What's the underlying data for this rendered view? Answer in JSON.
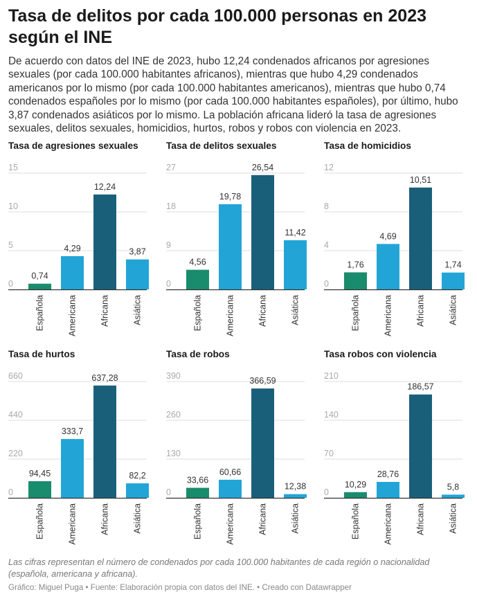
{
  "title": "Tasa de delitos por cada 100.000 personas en 2023 según el INE",
  "description": "De acuerdo con datos del INE de 2023, hubo 12,24 condenados africanos por agresiones sexuales (por cada 100.000 habitantes africanos), mientras que hubo 4,29 condenados americanos por lo mismo (por cada 100.000 habitantes americanos), mientras que hubo 0,74 condenados españoles por lo mismo (por cada 100.000 habitantes españoles), por último, hubo 3,87 condenados asiáticos por lo mismo. La población africana lideró la tasa de agresiones sexuales, delitos sexuales, homicidios, hurtos, robos y robos con violencia en 2023.",
  "note": "Las cifras representan el número de condenados por cada 100.000 habitantes de cada región o nacionalidad (española, americana y africana).",
  "footer": "Gráfico: Miguel Puga • Fuente: Elaboración propia con datos del INE. • Creado con Datawrapper",
  "colors": {
    "Española": "#1a8c6e",
    "Americana": "#22a5d6",
    "Africana": "#1a5f7a",
    "Asiática": "#22a5d6",
    "grid": "#dddddd",
    "axis": "#333333",
    "tick_text": "#aaaaaa"
  },
  "chart_data": [
    {
      "type": "bar",
      "title": "Tasa de agresiones sexuales",
      "categories": [
        "Española",
        "Americana",
        "Africana",
        "Asiática"
      ],
      "values": [
        0.74,
        4.29,
        12.24,
        3.87
      ],
      "value_labels": [
        "0,74",
        "4,29",
        "12,24",
        "3,87"
      ],
      "yticks": [
        0,
        5,
        10,
        15
      ],
      "ylim": [
        0,
        15
      ],
      "grid": true
    },
    {
      "type": "bar",
      "title": "Tasa de delitos sexuales",
      "categories": [
        "Española",
        "Americana",
        "Africana",
        "Asiática"
      ],
      "values": [
        4.56,
        19.78,
        26.54,
        11.42
      ],
      "value_labels": [
        "4,56",
        "19,78",
        "26,54",
        "11,42"
      ],
      "yticks": [
        0,
        9,
        18,
        27
      ],
      "ylim": [
        0,
        27
      ],
      "grid": true
    },
    {
      "type": "bar",
      "title": "Tasa de homicidios",
      "categories": [
        "Española",
        "Americana",
        "Africana",
        "Asiática"
      ],
      "values": [
        1.76,
        4.69,
        10.51,
        1.74
      ],
      "value_labels": [
        "1,76",
        "4,69",
        "10,51",
        "1,74"
      ],
      "yticks": [
        0,
        4,
        8,
        12
      ],
      "ylim": [
        0,
        12
      ],
      "grid": true
    },
    {
      "type": "bar",
      "title": "Tasa de hurtos",
      "categories": [
        "Española",
        "Americana",
        "Africana",
        "Asiática"
      ],
      "values": [
        94.45,
        333.7,
        637.28,
        82.2
      ],
      "value_labels": [
        "94,45",
        "333,7",
        "637,28",
        "82,2"
      ],
      "yticks": [
        0,
        220,
        440,
        660
      ],
      "ylim": [
        0,
        660
      ],
      "grid": true
    },
    {
      "type": "bar",
      "title": "Tasa de robos",
      "categories": [
        "Española",
        "Americana",
        "Africana",
        "Asiática"
      ],
      "values": [
        33.66,
        60.66,
        366.59,
        12.38
      ],
      "value_labels": [
        "33,66",
        "60,66",
        "366,59",
        "12,38"
      ],
      "yticks": [
        0,
        130,
        260,
        390
      ],
      "ylim": [
        0,
        390
      ],
      "grid": true
    },
    {
      "type": "bar",
      "title": "Tasa robos con violencia",
      "categories": [
        "Española",
        "Americana",
        "Africana",
        "Asiática"
      ],
      "values": [
        10.29,
        28.76,
        186.57,
        5.8
      ],
      "value_labels": [
        "10,29",
        "28,76",
        "186,57",
        "5,8"
      ],
      "yticks": [
        0,
        70,
        140,
        210
      ],
      "ylim": [
        0,
        210
      ],
      "grid": true
    }
  ]
}
